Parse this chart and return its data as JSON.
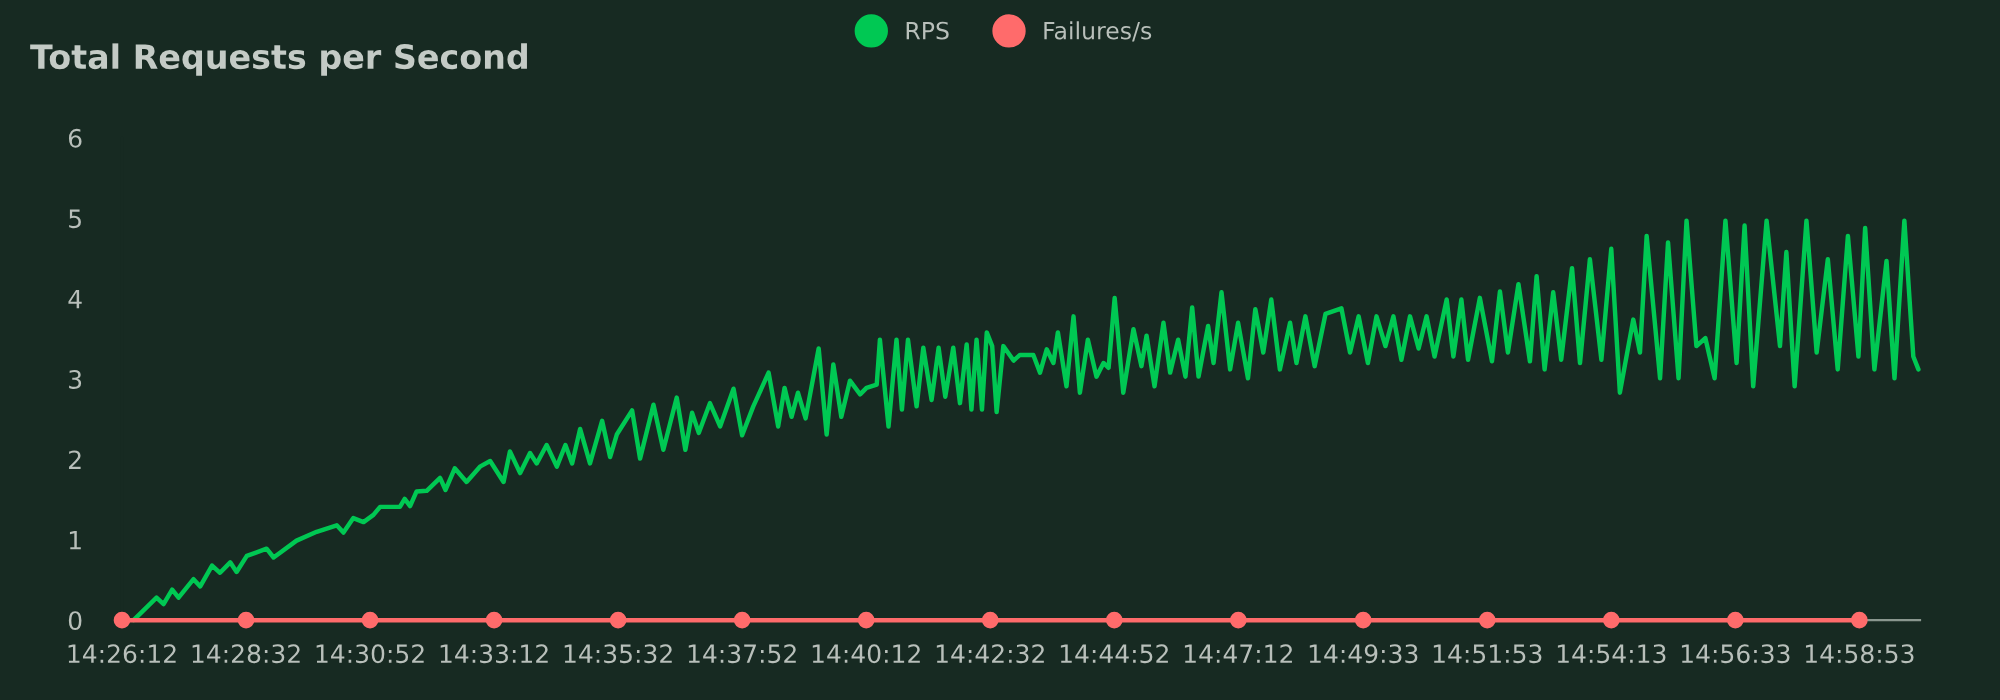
{
  "chart_data": {
    "type": "line",
    "title": "Total Requests per Second",
    "xlim": [
      14.43667,
      15.0004
    ],
    "ylim": [
      0,
      6
    ],
    "yticks": [
      0,
      1,
      2,
      3,
      4,
      5,
      6
    ],
    "xticks": [
      {
        "value": 14.43667,
        "label": "14:26:12"
      },
      {
        "value": 14.47556,
        "label": "14:28:32"
      },
      {
        "value": 14.51444,
        "label": "14:30:52"
      },
      {
        "value": 14.55333,
        "label": "14:33:12"
      },
      {
        "value": 14.59222,
        "label": "14:35:32"
      },
      {
        "value": 14.63111,
        "label": "14:37:52"
      },
      {
        "value": 14.67,
        "label": "14:40:12"
      },
      {
        "value": 14.70889,
        "label": "14:42:32"
      },
      {
        "value": 14.74778,
        "label": "14:44:52"
      },
      {
        "value": 14.78667,
        "label": "14:47:12"
      },
      {
        "value": 14.82583,
        "label": "14:49:33"
      },
      {
        "value": 14.86472,
        "label": "14:51:53"
      },
      {
        "value": 14.90361,
        "label": "14:54:13"
      },
      {
        "value": 14.9425,
        "label": "14:56:33"
      },
      {
        "value": 14.98139,
        "label": "14:58:53"
      }
    ],
    "legend": "top",
    "grid": false,
    "series": [
      {
        "name": "RPS",
        "color": "#00c853",
        "marker": "none",
        "x": [
          14.4403,
          14.4475,
          14.4497,
          14.4524,
          14.4544,
          14.4591,
          14.4612,
          14.4649,
          14.4674,
          14.4706,
          14.4726,
          14.4758,
          14.482,
          14.4842,
          14.4914,
          14.4977,
          14.504,
          14.5061,
          14.5092,
          14.5124,
          14.5155,
          14.5176,
          14.5238,
          14.5253,
          14.527,
          14.529,
          14.5322,
          14.5364,
          14.5381,
          14.541,
          14.5447,
          14.5489,
          14.5521,
          14.5563,
          14.5583,
          14.5615,
          14.5646,
          14.5667,
          14.5698,
          14.573,
          14.5757,
          14.5778,
          14.5803,
          14.5834,
          14.5872,
          14.5897,
          14.5918,
          14.5966,
          14.5991,
          14.6033,
          14.6064,
          14.6106,
          14.6133,
          14.6154,
          14.6175,
          14.621,
          14.6242,
          14.6284,
          14.6311,
          14.6346,
          14.6394,
          14.6424,
          14.6444,
          14.6466,
          14.6486,
          14.651,
          14.6551,
          14.6576,
          14.6597,
          14.6622,
          14.6649,
          14.6681,
          14.6701,
          14.6733,
          14.6743,
          14.677,
          14.6795,
          14.6812,
          14.6831,
          14.6858,
          14.6879,
          14.6905,
          14.6927,
          14.6948,
          14.6973,
          14.6994,
          14.7015,
          14.703,
          14.7046,
          14.7063,
          14.7078,
          14.7095,
          14.7109,
          14.713,
          14.7162,
          14.7182,
          14.7224,
          14.7245,
          14.7266,
          14.7287,
          14.7301,
          14.7328,
          14.735,
          14.737,
          14.7395,
          14.7422,
          14.7444,
          14.746,
          14.7479,
          14.7506,
          14.7538,
          14.7563,
          14.7579,
          14.7604,
          14.7632,
          14.7653,
          14.7678,
          14.7701,
          14.7722,
          14.7742,
          14.7772,
          14.7789,
          14.7814,
          14.7841,
          14.7866,
          14.7897,
          14.792,
          14.7945,
          14.797,
          14.7997,
          14.8029,
          14.8049,
          14.8077,
          14.8106,
          14.814,
          14.819,
          14.8217,
          14.8244,
          14.8273,
          14.83,
          14.8328,
          14.8353,
          14.8378,
          14.8405,
          14.8432,
          14.8457,
          14.8482,
          14.852,
          14.8541,
          14.8566,
          14.8587,
          14.8624,
          14.8662,
          14.8687,
          14.8712,
          14.8745,
          14.8781,
          14.8802,
          14.8827,
          14.8854,
          14.8879,
          14.8913,
          14.8938,
          14.8969,
          14.9005,
          14.9036,
          14.9063,
          14.9105,
          14.9126,
          14.9147,
          14.9189,
          14.9214,
          14.9247,
          14.9272,
          14.9303,
          14.9331,
          14.936,
          14.9394,
          14.9429,
          14.9454,
          14.9481,
          14.9523,
          14.9565,
          14.9585,
          14.9611,
          14.9648,
          14.968,
          14.9715,
          14.9746,
          14.9778,
          14.9811,
          14.9832,
          14.9861,
          14.9899,
          14.9924,
          14.9955,
          14.9983,
          14.9999
        ],
        "values": [
          0,
          0.28,
          0.2,
          0.38,
          0.28,
          0.51,
          0.42,
          0.68,
          0.59,
          0.72,
          0.6,
          0.8,
          0.89,
          0.78,
          0.99,
          1.1,
          1.18,
          1.09,
          1.27,
          1.22,
          1.31,
          1.41,
          1.41,
          1.51,
          1.42,
          1.6,
          1.61,
          1.77,
          1.62,
          1.89,
          1.72,
          1.91,
          1.98,
          1.72,
          2.1,
          1.83,
          2.08,
          1.95,
          2.18,
          1.91,
          2.18,
          1.95,
          2.38,
          1.95,
          2.48,
          2.03,
          2.31,
          2.61,
          2.01,
          2.68,
          2.12,
          2.77,
          2.12,
          2.58,
          2.33,
          2.7,
          2.41,
          2.88,
          2.3,
          2.66,
          3.08,
          2.41,
          2.89,
          2.53,
          2.83,
          2.51,
          3.38,
          2.31,
          3.18,
          2.53,
          2.98,
          2.81,
          2.89,
          2.93,
          3.49,
          2.41,
          3.49,
          2.62,
          3.49,
          2.66,
          3.39,
          2.74,
          3.39,
          2.78,
          3.39,
          2.7,
          3.43,
          2.62,
          3.49,
          2.62,
          3.58,
          3.41,
          2.59,
          3.41,
          3.23,
          3.3,
          3.3,
          3.08,
          3.37,
          3.2,
          3.58,
          2.91,
          3.78,
          2.83,
          3.49,
          3.03,
          3.2,
          3.14,
          4.01,
          2.83,
          3.62,
          3.16,
          3.54,
          2.91,
          3.7,
          3.08,
          3.49,
          3.03,
          3.89,
          3.03,
          3.66,
          3.2,
          4.08,
          3.12,
          3.7,
          3.01,
          3.87,
          3.33,
          3.99,
          3.12,
          3.7,
          3.2,
          3.78,
          3.16,
          3.81,
          3.88,
          3.33,
          3.78,
          3.2,
          3.78,
          3.41,
          3.78,
          3.24,
          3.78,
          3.38,
          3.78,
          3.28,
          3.99,
          3.28,
          3.99,
          3.24,
          4.01,
          3.22,
          4.09,
          3.33,
          4.18,
          3.22,
          4.28,
          3.12,
          4.08,
          3.24,
          4.38,
          3.2,
          4.49,
          3.24,
          4.62,
          2.83,
          3.74,
          3.33,
          4.78,
          3.01,
          4.7,
          3.01,
          4.97,
          3.41,
          3.51,
          3.01,
          4.97,
          3.2,
          4.91,
          2.91,
          4.97,
          3.41,
          4.58,
          2.91,
          4.97,
          3.33,
          4.49,
          3.12,
          4.78,
          3.28,
          4.88,
          3.12,
          4.47,
          3.01,
          4.97,
          3.28,
          3.12
        ]
      },
      {
        "name": "Failures/s",
        "color": "#ff6b6b",
        "marker": "circle",
        "x": [
          14.43667,
          14.47556,
          14.51444,
          14.55333,
          14.59222,
          14.63111,
          14.67,
          14.70889,
          14.74778,
          14.78667,
          14.82583,
          14.86472,
          14.90361,
          14.9425,
          14.98139
        ],
        "values": [
          0,
          0,
          0,
          0,
          0,
          0,
          0,
          0,
          0,
          0,
          0,
          0,
          0,
          0,
          0
        ]
      }
    ]
  }
}
